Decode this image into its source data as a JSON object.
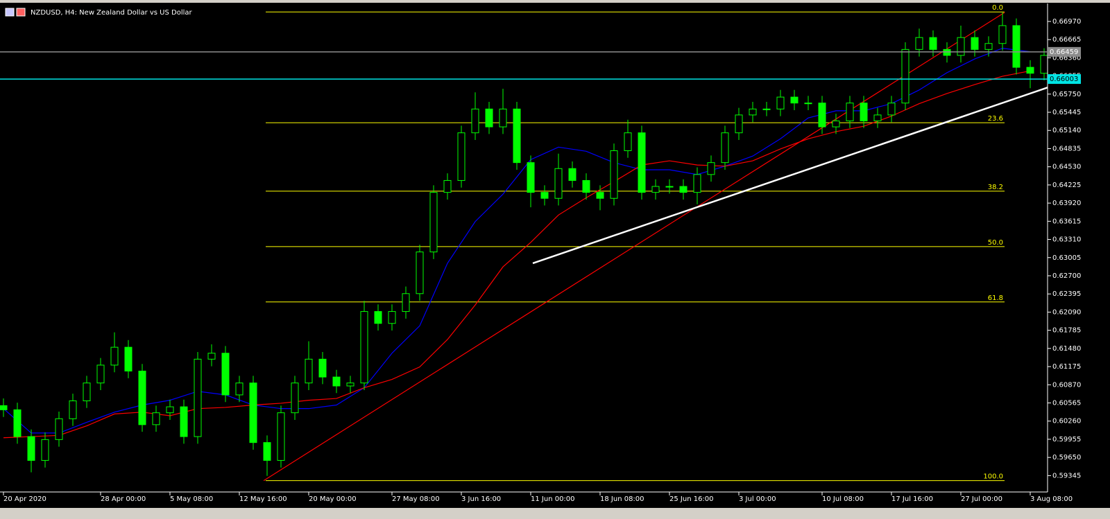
{
  "chart_data": {
    "type": "candlestick",
    "title": "NZDUSD, H4:  New Zealand Dollar vs US Dollar",
    "candle_color": "#00ff00",
    "xlim": [
      0,
      75
    ],
    "ylim": [
      0.5907,
      0.6733
    ],
    "xticks": [
      {
        "value": 0,
        "label": "20 Apr 2020"
      },
      {
        "value": 7,
        "label": "28 Apr 00:00"
      },
      {
        "value": 12,
        "label": "5 May 08:00"
      },
      {
        "value": 17,
        "label": "12 May 16:00"
      },
      {
        "value": 22,
        "label": "20 May 00:00"
      },
      {
        "value": 28,
        "label": "27 May 08:00"
      },
      {
        "value": 33,
        "label": "3 Jun 16:00"
      },
      {
        "value": 38,
        "label": "11 Jun 00:00"
      },
      {
        "value": 43,
        "label": "18 Jun 08:00"
      },
      {
        "value": 48,
        "label": "25 Jun 16:00"
      },
      {
        "value": 53,
        "label": "3 Jul 00:00"
      },
      {
        "value": 59,
        "label": "10 Jul 08:00"
      },
      {
        "value": 64,
        "label": "17 Jul 16:00"
      },
      {
        "value": 69,
        "label": "27 Jul 00:00"
      },
      {
        "value": 74,
        "label": "3 Aug 08:00"
      }
    ],
    "yticks": [
      {
        "value": 0.6697,
        "label": "0.66970"
      },
      0.66665,
      {
        "value": 0.6636,
        "label": "0.66360"
      },
      0.66055,
      {
        "value": 0.6575,
        "label": "0.65750"
      },
      0.65445,
      {
        "value": 0.6514,
        "label": "0.65140"
      },
      0.64835,
      {
        "value": 0.6453,
        "label": "0.64530"
      },
      0.64225,
      {
        "value": 0.6392,
        "label": "0.63920"
      },
      0.63615,
      {
        "value": 0.6331,
        "label": "0.63310"
      },
      0.63005,
      {
        "value": 0.627,
        "label": "0.62700"
      },
      0.62395,
      {
        "value": 0.6209,
        "label": "0.62090"
      },
      0.61785,
      {
        "value": 0.6148,
        "label": "0.61480"
      },
      0.61175,
      {
        "value": 0.6087,
        "label": "0.60870"
      },
      0.60565,
      {
        "value": 0.6026,
        "label": "0.60260"
      },
      0.59955,
      {
        "value": 0.5965,
        "label": "0.59650"
      },
      0.59345
    ],
    "open": [
      0.6052,
      0.6045,
      0.6,
      0.596,
      0.5995,
      0.603,
      0.606,
      0.609,
      0.612,
      0.615,
      0.611,
      0.602,
      0.604,
      0.605,
      0.6,
      0.613,
      0.614,
      0.607,
      0.609,
      0.599,
      0.596,
      0.604,
      0.609,
      0.613,
      0.61,
      0.6085,
      0.609,
      0.621,
      0.619,
      0.621,
      0.624,
      0.631,
      0.641,
      0.643,
      0.651,
      0.655,
      0.652,
      0.655,
      0.646,
      0.641,
      0.64,
      0.645,
      0.643,
      0.641,
      0.64,
      0.648,
      0.651,
      0.641,
      0.642,
      0.642,
      0.641,
      0.644,
      0.646,
      0.651,
      0.654,
      0.655,
      0.655,
      0.657,
      0.656,
      0.656,
      0.652,
      0.653,
      0.656,
      0.653,
      0.654,
      0.656,
      0.665,
      0.667,
      0.665,
      0.664,
      0.667,
      0.665,
      0.666,
      0.669,
      0.662,
      0.661
    ],
    "high": [
      0.6064,
      0.6057,
      0.6012,
      0.6007,
      0.6042,
      0.6072,
      0.6102,
      0.6132,
      0.6175,
      0.6162,
      0.6122,
      0.6052,
      0.6062,
      0.6062,
      0.6142,
      0.6155,
      0.6152,
      0.6102,
      0.6102,
      0.6002,
      0.6052,
      0.6102,
      0.616,
      0.6142,
      0.6112,
      0.6102,
      0.6228,
      0.6222,
      0.6222,
      0.6252,
      0.6322,
      0.6422,
      0.6442,
      0.6522,
      0.6578,
      0.6562,
      0.6584,
      0.6562,
      0.6472,
      0.6422,
      0.6475,
      0.6462,
      0.6442,
      0.6422,
      0.6492,
      0.6532,
      0.6522,
      0.6432,
      0.6432,
      0.6432,
      0.6452,
      0.6472,
      0.6522,
      0.6552,
      0.6562,
      0.6562,
      0.6582,
      0.6582,
      0.6572,
      0.6572,
      0.6542,
      0.6572,
      0.6572,
      0.6552,
      0.6572,
      0.6662,
      0.6685,
      0.6682,
      0.6662,
      0.669,
      0.6682,
      0.6672,
      0.6712,
      0.6702,
      0.6632,
      0.6652
    ],
    "low": [
      0.6033,
      0.5988,
      0.594,
      0.5948,
      0.5983,
      0.6018,
      0.6048,
      0.6078,
      0.6108,
      0.6098,
      0.6008,
      0.6008,
      0.6028,
      0.5988,
      0.5988,
      0.6118,
      0.6058,
      0.6058,
      0.5978,
      0.5934,
      0.5948,
      0.6028,
      0.6078,
      0.6088,
      0.6073,
      0.6073,
      0.6078,
      0.6178,
      0.6178,
      0.6198,
      0.6228,
      0.6298,
      0.6398,
      0.6418,
      0.6498,
      0.6508,
      0.6508,
      0.6448,
      0.6385,
      0.6388,
      0.6388,
      0.6418,
      0.6398,
      0.638,
      0.6388,
      0.6468,
      0.6398,
      0.6398,
      0.6408,
      0.6398,
      0.639,
      0.6428,
      0.6448,
      0.6498,
      0.6528,
      0.6538,
      0.6538,
      0.6548,
      0.6548,
      0.6508,
      0.6508,
      0.6518,
      0.6518,
      0.6518,
      0.6528,
      0.6548,
      0.6638,
      0.6638,
      0.6628,
      0.6628,
      0.6638,
      0.6638,
      0.6648,
      0.6608,
      0.6585,
      0.6598
    ],
    "close": [
      0.6045,
      0.6,
      0.596,
      0.5995,
      0.603,
      0.606,
      0.609,
      0.612,
      0.615,
      0.611,
      0.602,
      0.604,
      0.605,
      0.6,
      0.613,
      0.614,
      0.607,
      0.609,
      0.599,
      0.596,
      0.604,
      0.609,
      0.613,
      0.61,
      0.6085,
      0.609,
      0.621,
      0.619,
      0.621,
      0.624,
      0.631,
      0.641,
      0.643,
      0.651,
      0.655,
      0.652,
      0.655,
      0.646,
      0.641,
      0.64,
      0.645,
      0.643,
      0.641,
      0.64,
      0.648,
      0.651,
      0.641,
      0.642,
      0.642,
      0.641,
      0.644,
      0.646,
      0.651,
      0.654,
      0.655,
      0.655,
      0.657,
      0.656,
      0.656,
      0.652,
      0.653,
      0.656,
      0.653,
      0.654,
      0.656,
      0.665,
      0.667,
      0.665,
      0.664,
      0.667,
      0.665,
      0.666,
      0.669,
      0.662,
      0.661,
      0.664
    ],
    "moving_averages": [
      {
        "color": "#0000ff",
        "x": [
          0,
          2,
          4,
          6,
          8,
          10,
          12,
          14,
          16,
          18,
          20,
          22,
          24,
          26,
          28,
          30,
          32,
          34,
          36,
          38,
          40,
          42,
          44,
          46,
          48,
          50,
          52,
          54,
          56,
          58,
          60,
          62,
          64,
          66,
          68,
          70,
          72,
          74
        ],
        "values": [
          0.6047,
          0.6006,
          0.6006,
          0.6024,
          0.6041,
          0.6053,
          0.6061,
          0.6076,
          0.607,
          0.6053,
          0.6047,
          0.6047,
          0.6053,
          0.6082,
          0.614,
          0.6186,
          0.6291,
          0.6361,
          0.6407,
          0.6465,
          0.6486,
          0.6479,
          0.646,
          0.6448,
          0.6448,
          0.644,
          0.6454,
          0.6471,
          0.65,
          0.6535,
          0.6547,
          0.6547,
          0.6559,
          0.6582,
          0.6611,
          0.6634,
          0.6652,
          0.6646
        ]
      },
      {
        "color": "#ff0000",
        "x": [
          0,
          2,
          4,
          6,
          8,
          10,
          12,
          14,
          16,
          18,
          20,
          22,
          24,
          26,
          28,
          30,
          32,
          34,
          36,
          38,
          40,
          42,
          44,
          46,
          48,
          50,
          52,
          54,
          56,
          58,
          60,
          62,
          64,
          66,
          68,
          70,
          72,
          74
        ],
        "values": [
          0.5998,
          0.6,
          0.6002,
          0.6018,
          0.6038,
          0.6041,
          0.6035,
          0.6047,
          0.6049,
          0.6053,
          0.6056,
          0.6061,
          0.6064,
          0.6082,
          0.6096,
          0.6117,
          0.6163,
          0.6221,
          0.6285,
          0.6326,
          0.6372,
          0.6401,
          0.6428,
          0.6456,
          0.6463,
          0.6456,
          0.6454,
          0.6463,
          0.6483,
          0.65,
          0.6512,
          0.6521,
          0.6538,
          0.6559,
          0.6576,
          0.6591,
          0.6605,
          0.6614
        ]
      }
    ],
    "trendlines": [
      {
        "color": "#ff0000",
        "x": [
          18.75,
          72.15
        ],
        "values": [
          0.5926,
          0.6712
        ]
      },
      {
        "color": "#ffffff",
        "x": [
          38.15,
          75.25
        ],
        "values": [
          0.6291,
          0.6586
        ]
      }
    ],
    "fibonacci": {
      "color": "#ffff00",
      "x": [
        18.9,
        72.15
      ],
      "levels": [
        {
          "value": 0.6713,
          "label": "0.0"
        },
        {
          "value": 0.6527,
          "label": "23.6"
        },
        {
          "value": 0.6412,
          "label": "38.2"
        },
        {
          "value": 0.6319,
          "label": "50.0"
        },
        {
          "value": 0.6226,
          "label": "61.8"
        },
        {
          "value": 0.5926,
          "label": "100.0"
        }
      ]
    },
    "price_lines": [
      {
        "value": 0.66459,
        "color": "#8c8c8c"
      },
      {
        "value": 0.66003,
        "color": "#00e5e5"
      }
    ]
  }
}
